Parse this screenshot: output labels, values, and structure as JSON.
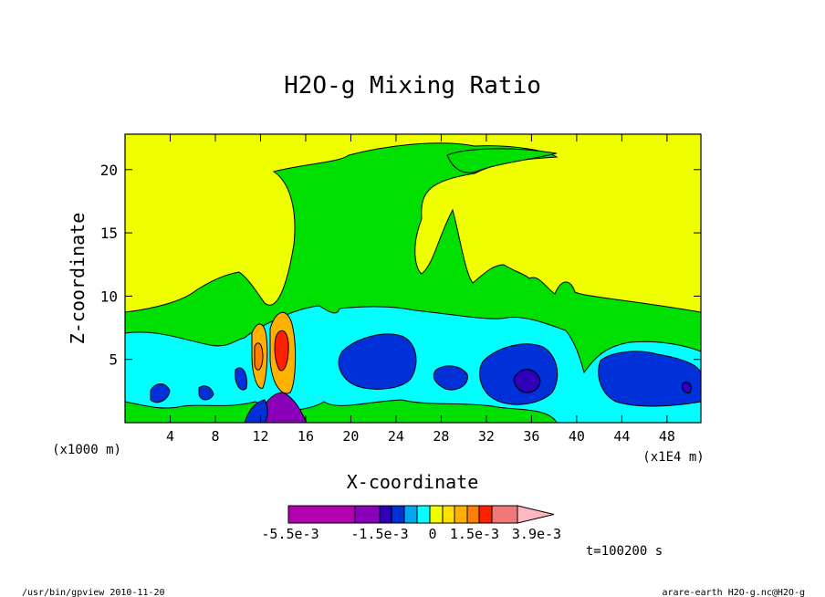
{
  "chart_data": {
    "type": "heatmap",
    "title": "H2O-g Mixing Ratio",
    "xlabel": "X-coordinate",
    "ylabel": "Z-coordinate",
    "x_unit": "(x1000 m)",
    "x_unit_right": "(x1E4 m)",
    "xlim": [
      0,
      51
    ],
    "ylim": [
      0,
      22.8
    ],
    "xticks": [
      4,
      8,
      12,
      16,
      20,
      24,
      28,
      32,
      36,
      40,
      44,
      48
    ],
    "yticks": [
      5,
      10,
      15,
      20
    ],
    "grid": false,
    "colorbar": {
      "colors": [
        "#b000b0",
        "#8a00b8",
        "#2f00b8",
        "#0030d8",
        "#00a8f0",
        "#00ffff",
        "#f0ff00",
        "#ffe000",
        "#ffb000",
        "#ff8000",
        "#ff2000",
        "#f07878",
        "#ffb8c0"
      ],
      "labels": [
        "-5.5e-3",
        "-1.5e-3",
        "0",
        "1.5e-3",
        "3.9e-3"
      ]
    },
    "time_label": "t=100200 s"
  },
  "footer": {
    "left": "/usr/bin/gpview  2010-11-20",
    "right": "arare-earth_H2O-g.nc@H2O-g"
  }
}
